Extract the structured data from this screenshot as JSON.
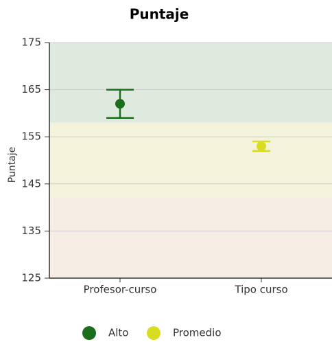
{
  "chart_data": {
    "type": "errorbar",
    "title": "Puntaje",
    "y_label": "Puntaje",
    "categories": [
      "Profesor-curso",
      "Tipo curso"
    ],
    "series": [
      {
        "name": "Alto",
        "color": "#1b6e1b",
        "values": [
          162,
          null
        ],
        "errors": [
          3,
          null
        ]
      },
      {
        "name": "Promedio",
        "color": "#d9dd22",
        "values": [
          null,
          153
        ],
        "errors": [
          null,
          1
        ]
      }
    ],
    "bands": [
      {
        "from": 158,
        "to": 175,
        "color": "#dfeadf"
      },
      {
        "from": 142,
        "to": 158,
        "color": "#f3f3dc"
      },
      {
        "from": 125,
        "to": 142,
        "color": "#f6ede5"
      }
    ],
    "ylim": [
      125,
      175
    ],
    "yticks": [
      125,
      135,
      145,
      155,
      165,
      175
    ],
    "grid": true
  }
}
